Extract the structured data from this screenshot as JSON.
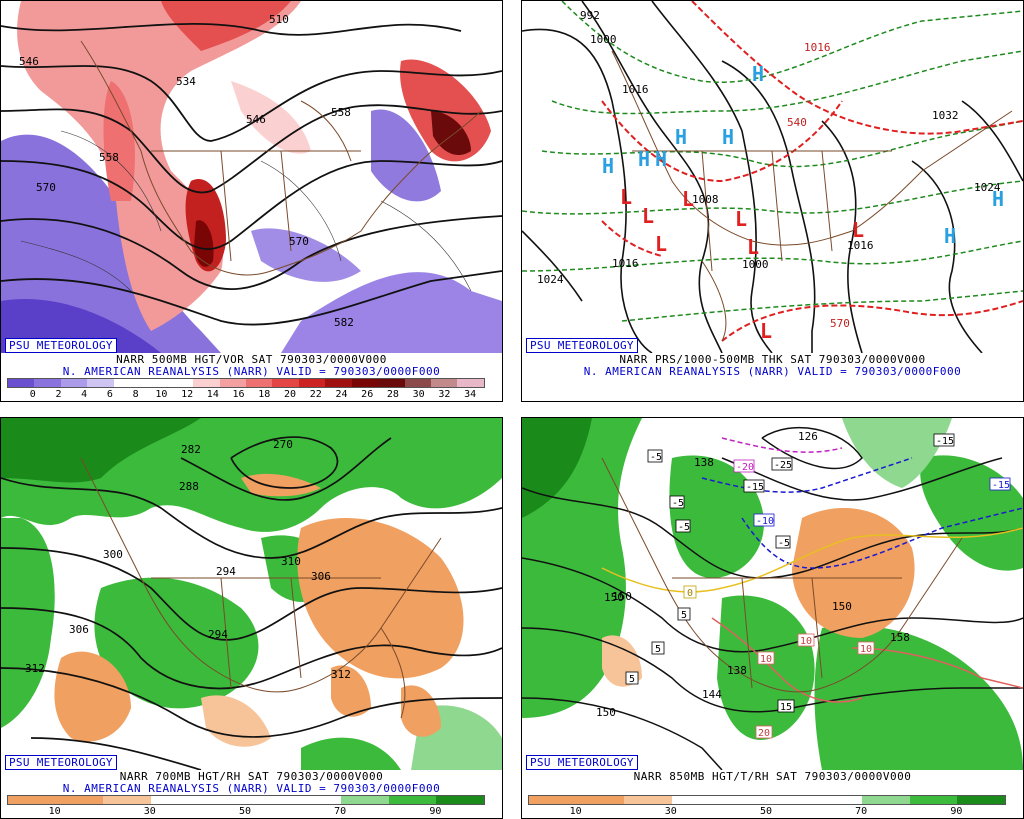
{
  "panels": {
    "tl": {
      "badge": "PSU METEOROLOGY",
      "caption1": "NARR 500MB HGT/VOR SAT 790303/0000V000",
      "caption2": "N. AMERICAN REANALYSIS (NARR) VALID = 790303/0000F000",
      "contour_labels": [
        "510",
        "546",
        "534",
        "546",
        "558",
        "570",
        "570",
        "582",
        "558"
      ],
      "colorbar": {
        "colors": [
          "#6a4fd0",
          "#8a73de",
          "#ab9be8",
          "#cfc5f2",
          "#ffffff",
          "#ffffff",
          "#ffffff",
          "#fbd0d0",
          "#f5a0a0",
          "#ee7070",
          "#e44545",
          "#cc2222",
          "#a01010",
          "#7a0505",
          "#6b0a0a",
          "#8c4a4a",
          "#c28a8a",
          "#e8b8c8"
        ],
        "ticks": [
          "0",
          "2",
          "4",
          "6",
          "8",
          "10",
          "12",
          "14",
          "16",
          "18",
          "20",
          "22",
          "24",
          "26",
          "28",
          "30",
          "32",
          "34"
        ]
      }
    },
    "tr": {
      "badge": "PSU METEOROLOGY",
      "caption1": "NARR PRS/1000-500MB THK SAT 790303/0000V000",
      "caption2": "N. AMERICAN REANALYSIS (NARR) VALID = 790303/0000F000",
      "contour_labels": [
        "992",
        "1000",
        "1016",
        "1016",
        "540",
        "1008",
        "1024",
        "1016",
        "1000",
        "1016",
        "1024",
        "570",
        "1032"
      ],
      "highs": [
        "H",
        "H",
        "H",
        "H",
        "H",
        "H",
        "H",
        "H"
      ],
      "lows": [
        "L",
        "L",
        "L",
        "L",
        "L",
        "L",
        "L",
        "L"
      ]
    },
    "bl": {
      "badge": "PSU METEOROLOGY",
      "caption1": "NARR 700MB HGT/RH SAT 790303/0000V000",
      "caption2": "N. AMERICAN REANALYSIS (NARR) VALID = 790303/0000F000",
      "contour_labels": [
        "270",
        "282",
        "288",
        "300",
        "310",
        "306",
        "294",
        "294",
        "306",
        "312",
        "312"
      ],
      "colorbar": {
        "colors": [
          "#f0a060",
          "#f0a060",
          "#f7c49a",
          "#ffffff",
          "#ffffff",
          "#ffffff",
          "#ffffff",
          "#8fd88f",
          "#3cba3c",
          "#1a8a1a"
        ],
        "ticks": [
          "10",
          "30",
          "50",
          "70",
          "90"
        ]
      }
    },
    "br": {
      "badge": "PSU METEOROLOGY",
      "caption1": "NARR 850MB HGT/T/RH SAT 790303/0000V000",
      "caption2": "",
      "contour_labels": [
        "126",
        "138",
        "150",
        "150",
        "150",
        "138",
        "144",
        "150",
        "158"
      ],
      "temp_labels": [
        "-5",
        "-5",
        "-5",
        "-5",
        "-10",
        "-15",
        "-20",
        "-25",
        "-15",
        "-15",
        "0",
        "5",
        "5",
        "5",
        "10",
        "10",
        "10",
        "15",
        "20"
      ],
      "colorbar": {
        "colors": [
          "#f0a060",
          "#f0a060",
          "#f7c49a",
          "#ffffff",
          "#ffffff",
          "#ffffff",
          "#ffffff",
          "#8fd88f",
          "#3cba3c",
          "#1a8a1a"
        ],
        "ticks": [
          "10",
          "30",
          "50",
          "70",
          "90"
        ]
      }
    }
  }
}
